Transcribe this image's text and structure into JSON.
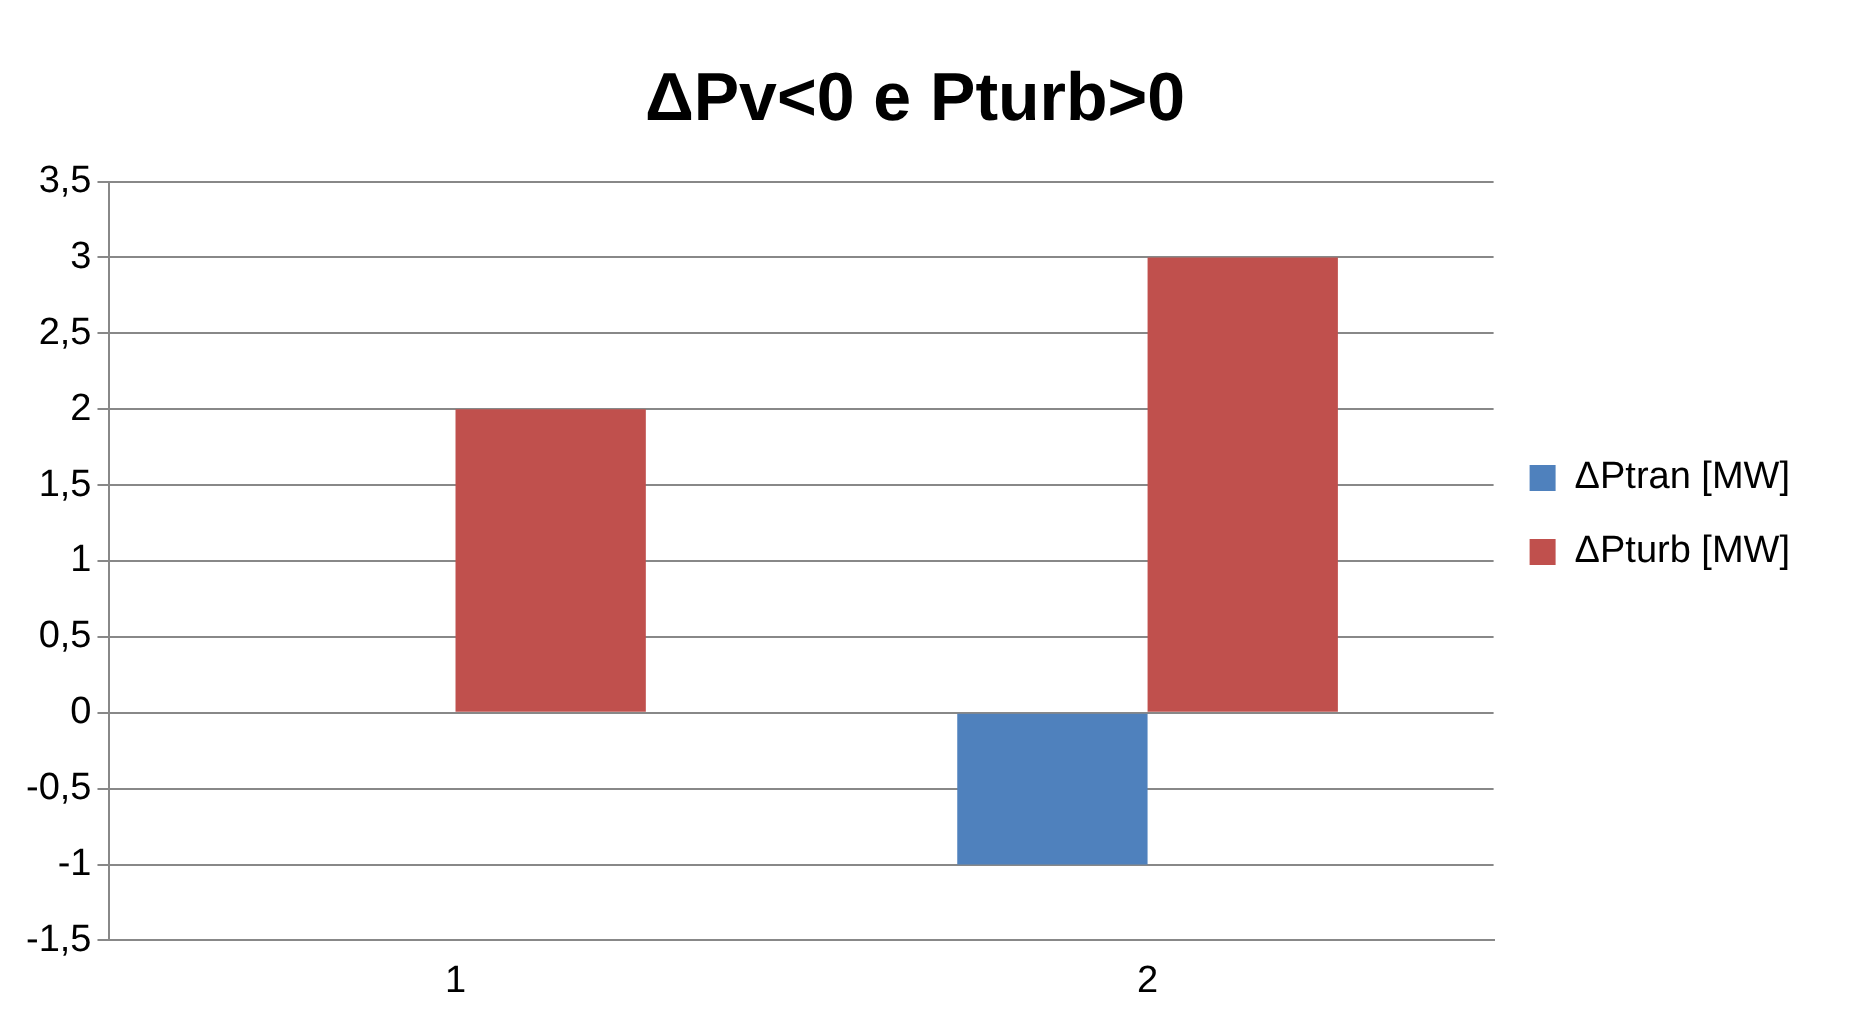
{
  "chart_data": {
    "type": "bar",
    "title": "ΔPv<0 e Pturb>0",
    "categories": [
      "1",
      "2"
    ],
    "series": [
      {
        "name": "ΔPtran [MW]",
        "color": "#4f81bd",
        "values": [
          0,
          -1
        ]
      },
      {
        "name": "ΔPturb [MW]",
        "color": "#c0504d",
        "values": [
          2,
          3
        ]
      }
    ],
    "ylim": [
      -1.5,
      3.5
    ],
    "yticks": [
      {
        "value": -1.5,
        "label": "-1,5"
      },
      {
        "value": -1,
        "label": "-1"
      },
      {
        "value": -0.5,
        "label": "-0,5"
      },
      {
        "value": 0,
        "label": "0"
      },
      {
        "value": 0.5,
        "label": "0,5"
      },
      {
        "value": 1,
        "label": "1"
      },
      {
        "value": 1.5,
        "label": "1,5"
      },
      {
        "value": 2,
        "label": "2"
      },
      {
        "value": 2.5,
        "label": "2,5"
      },
      {
        "value": 3,
        "label": "3"
      },
      {
        "value": 3.5,
        "label": "3,5"
      }
    ],
    "grid": "y",
    "legend": "right"
  }
}
